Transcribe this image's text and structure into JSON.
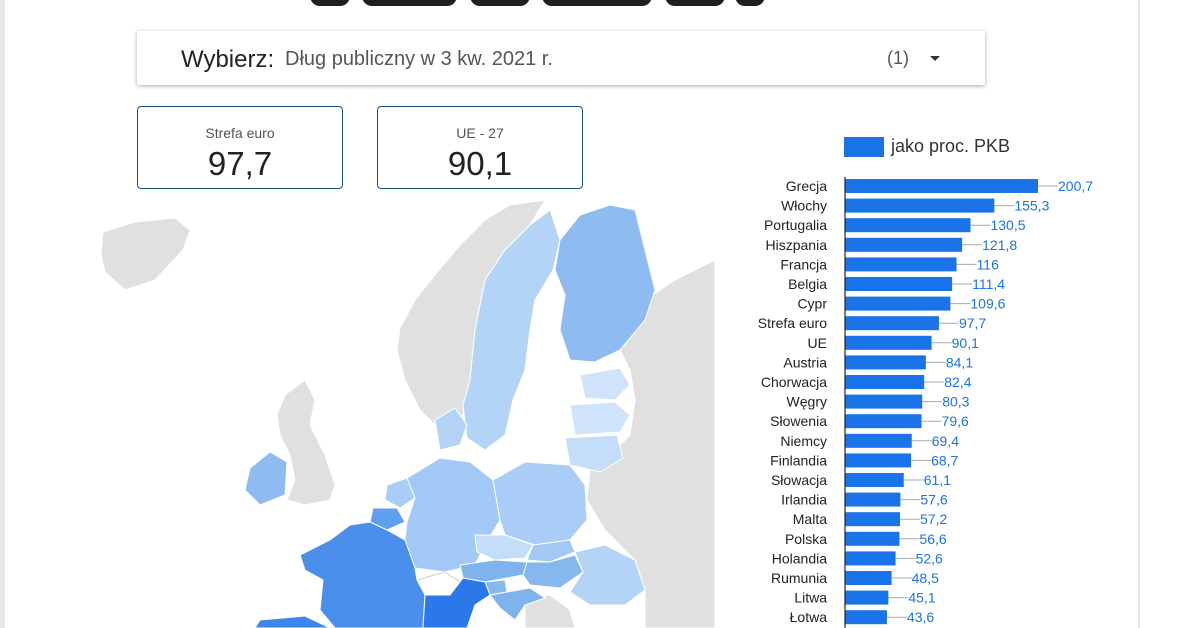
{
  "selector": {
    "label": "Wybierz",
    "separator": ":",
    "value": "Dług publiczny w 3 kw. 2021 r.",
    "count": "(1)"
  },
  "kpis": [
    {
      "label": "Strefa euro",
      "value": "97,7"
    },
    {
      "label": "UE - 27",
      "value": "90,1"
    }
  ],
  "colors": {
    "bar": "#1a73e8",
    "value_label": "#1a73e8",
    "map_land": "#e0e0e0",
    "map_sea": "#ffffff"
  },
  "map": {
    "countries": [
      {
        "name": "Grecja",
        "value": 200.7
      },
      {
        "name": "Włochy",
        "value": 155.3
      },
      {
        "name": "Portugalia",
        "value": 130.5
      },
      {
        "name": "Hiszpania",
        "value": 121.8
      },
      {
        "name": "Francja",
        "value": 116
      },
      {
        "name": "Belgia",
        "value": 111.4
      },
      {
        "name": "Austria",
        "value": 84.1
      },
      {
        "name": "Chorwacja",
        "value": 82.4
      },
      {
        "name": "Węgry",
        "value": 80.3
      },
      {
        "name": "Słowenia",
        "value": 79.6
      },
      {
        "name": "Niemcy",
        "value": 69.4
      },
      {
        "name": "Finlandia",
        "value": 68.7
      },
      {
        "name": "Słowacja",
        "value": 61.1
      },
      {
        "name": "Irlandia",
        "value": 57.6
      },
      {
        "name": "Polska",
        "value": 56.6
      },
      {
        "name": "Holandia",
        "value": 52.6
      },
      {
        "name": "Rumunia",
        "value": 48.5
      },
      {
        "name": "Litwa",
        "value": 45.1
      },
      {
        "name": "Łotwa",
        "value": 43.6
      }
    ]
  },
  "chart_data": {
    "type": "bar",
    "orientation": "horizontal",
    "legend": "jako proc. PKB",
    "legend_position": "top",
    "categories": [
      "Grecja",
      "Włochy",
      "Portugalia",
      "Hiszpania",
      "Francja",
      "Belgia",
      "Cypr",
      "Strefa euro",
      "UE",
      "Austria",
      "Chorwacja",
      "Węgry",
      "Słowenia",
      "Niemcy",
      "Finlandia",
      "Słowacja",
      "Irlandia",
      "Malta",
      "Polska",
      "Holandia",
      "Rumunia",
      "Litwa",
      "Łotwa"
    ],
    "values": [
      200.7,
      155.3,
      130.5,
      121.8,
      116,
      111.4,
      109.6,
      97.7,
      90.1,
      84.1,
      82.4,
      80.3,
      79.6,
      69.4,
      68.7,
      61.1,
      57.6,
      57.2,
      56.6,
      52.6,
      48.5,
      45.1,
      43.6
    ],
    "value_labels": [
      "200,7",
      "155,3",
      "130,5",
      "121,8",
      "116",
      "111,4",
      "109,6",
      "97,7",
      "90,1",
      "84,1",
      "82,4",
      "80,3",
      "79,6",
      "69,4",
      "68,7",
      "61,1",
      "57,6",
      "57,2",
      "56,6",
      "52,6",
      "48,5",
      "45,1",
      "43,6"
    ],
    "xlim": [
      0,
      200.7
    ],
    "grid": false
  }
}
